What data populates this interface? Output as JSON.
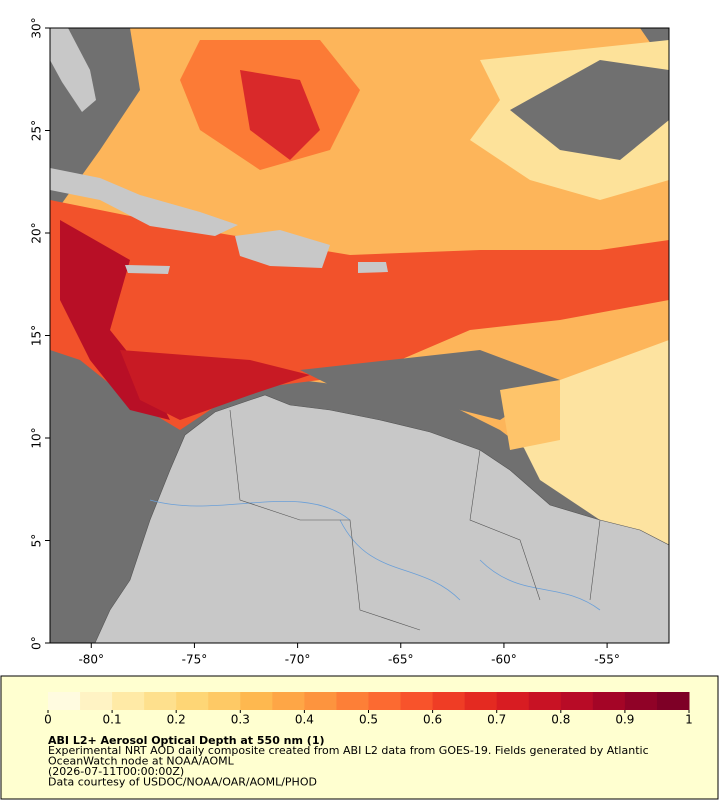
{
  "map": {
    "xlim": [
      -82,
      -52
    ],
    "ylim": [
      0,
      30
    ],
    "xticks": [
      {
        "value": -80,
        "label": "-80°"
      },
      {
        "value": -75,
        "label": "-75°"
      },
      {
        "value": -70,
        "label": "-70°"
      },
      {
        "value": -65,
        "label": "-65°"
      },
      {
        "value": -60,
        "label": "-60°"
      },
      {
        "value": -55,
        "label": "-55°"
      }
    ],
    "yticks": [
      {
        "value": 0,
        "label": "0°"
      },
      {
        "value": 5,
        "label": "5°"
      },
      {
        "value": 10,
        "label": "10°"
      },
      {
        "value": 15,
        "label": "15°"
      },
      {
        "value": 20,
        "label": "20°"
      },
      {
        "value": 25,
        "label": "25°"
      },
      {
        "value": 30,
        "label": "30°"
      }
    ]
  },
  "colorbar": {
    "lim": [
      0,
      1
    ],
    "ticks": [
      0,
      0.1,
      0.2,
      0.3,
      0.4,
      0.5,
      0.6,
      0.7,
      0.8,
      0.9,
      1
    ],
    "colors": [
      "#fffbe0",
      "#fff3c4",
      "#ffeaa6",
      "#fee08d",
      "#fed676",
      "#fec965",
      "#feb84f",
      "#fea646",
      "#fd943e",
      "#fd7f37",
      "#fc6a31",
      "#f8532b",
      "#ef3d25",
      "#e42a21",
      "#d81c22",
      "#c81224",
      "#b80b26",
      "#a40526",
      "#900227",
      "#7e0026"
    ]
  },
  "caption": {
    "title": "ABI L2+ Aerosol Optical Depth at 550 nm (1)",
    "lines": [
      "Experimental NRT AOD daily composite created from ABI L2 data from GOES-19. Fields generated by Atlantic",
      "OceanWatch node at NOAA/AOML",
      "(2026-07-11T00:00:00Z)",
      "Data courtesy of USDOC/NOAA/OAR/AOML/PHOD"
    ]
  }
}
